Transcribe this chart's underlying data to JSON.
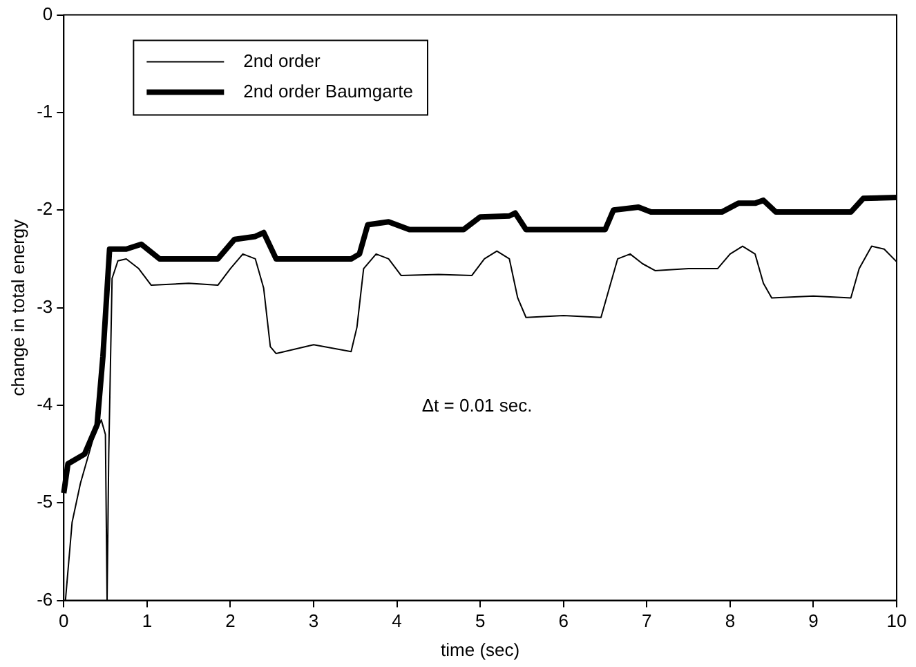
{
  "chart_data": {
    "type": "line",
    "xlabel": "time (sec)",
    "ylabel": "change in total energy",
    "annotations": [
      "Δt = 0.01 sec."
    ],
    "xlim": [
      0,
      10
    ],
    "xticks": [
      0,
      1,
      2,
      3,
      4,
      5,
      6,
      7,
      8,
      9,
      10
    ],
    "ylim": [
      -6,
      0
    ],
    "yticks": [
      -6,
      -5,
      -4,
      -3,
      -2,
      -1,
      0
    ],
    "grid": false,
    "legend": "top left",
    "marker": "none",
    "line_style": "solid",
    "series": [
      {
        "name": "2nd order",
        "color": "#000000",
        "x": [
          0.02,
          0.1,
          0.2,
          0.35,
          0.45,
          0.5,
          0.52,
          0.54,
          0.58,
          0.65,
          0.75,
          0.9,
          1.05,
          1.5,
          1.85,
          2.0,
          2.15,
          2.3,
          2.4,
          2.48,
          2.55,
          3.0,
          3.45,
          3.52,
          3.6,
          3.75,
          3.9,
          4.05,
          4.5,
          4.9,
          5.05,
          5.2,
          5.35,
          5.45,
          5.55,
          6.0,
          6.45,
          6.55,
          6.65,
          6.8,
          6.95,
          7.1,
          7.5,
          7.85,
          8.0,
          8.15,
          8.3,
          8.4,
          8.5,
          9.0,
          9.45,
          9.55,
          9.7,
          9.85,
          10
        ],
        "values": [
          -6,
          -5.2,
          -4.8,
          -4.35,
          -4.15,
          -4.3,
          -6,
          -4.5,
          -2.7,
          -2.52,
          -2.5,
          -2.6,
          -2.77,
          -2.75,
          -2.77,
          -2.6,
          -2.45,
          -2.5,
          -2.8,
          -3.4,
          -3.47,
          -3.38,
          -3.45,
          -3.2,
          -2.6,
          -2.45,
          -2.5,
          -2.67,
          -2.66,
          -2.67,
          -2.5,
          -2.42,
          -2.5,
          -2.9,
          -3.1,
          -3.08,
          -3.1,
          -2.8,
          -2.5,
          -2.45,
          -2.55,
          -2.62,
          -2.6,
          -2.6,
          -2.45,
          -2.37,
          -2.45,
          -2.75,
          -2.9,
          -2.88,
          -2.9,
          -2.6,
          -2.37,
          -2.4,
          -2.53
        ]
      },
      {
        "name": "2nd order Baumgarte",
        "color": "#000000",
        "x": [
          0,
          0.05,
          0.25,
          0.4,
          0.47,
          0.55,
          0.75,
          0.93,
          1.15,
          1.85,
          2.05,
          2.3,
          2.4,
          2.55,
          3.45,
          3.55,
          3.65,
          3.9,
          4.15,
          4.8,
          5.0,
          5.35,
          5.42,
          5.55,
          6.5,
          6.6,
          6.9,
          7.05,
          7.9,
          8.1,
          8.3,
          8.4,
          8.55,
          9.45,
          9.6,
          10
        ],
        "values": [
          -4.9,
          -4.6,
          -4.5,
          -4.2,
          -3.5,
          -2.4,
          -2.4,
          -2.35,
          -2.5,
          -2.5,
          -2.3,
          -2.27,
          -2.23,
          -2.5,
          -2.5,
          -2.45,
          -2.15,
          -2.12,
          -2.2,
          -2.2,
          -2.07,
          -2.06,
          -2.03,
          -2.2,
          -2.2,
          -2.0,
          -1.97,
          -2.02,
          -2.02,
          -1.93,
          -1.93,
          -1.9,
          -2.02,
          -2.02,
          -1.88,
          -1.87
        ]
      }
    ]
  }
}
